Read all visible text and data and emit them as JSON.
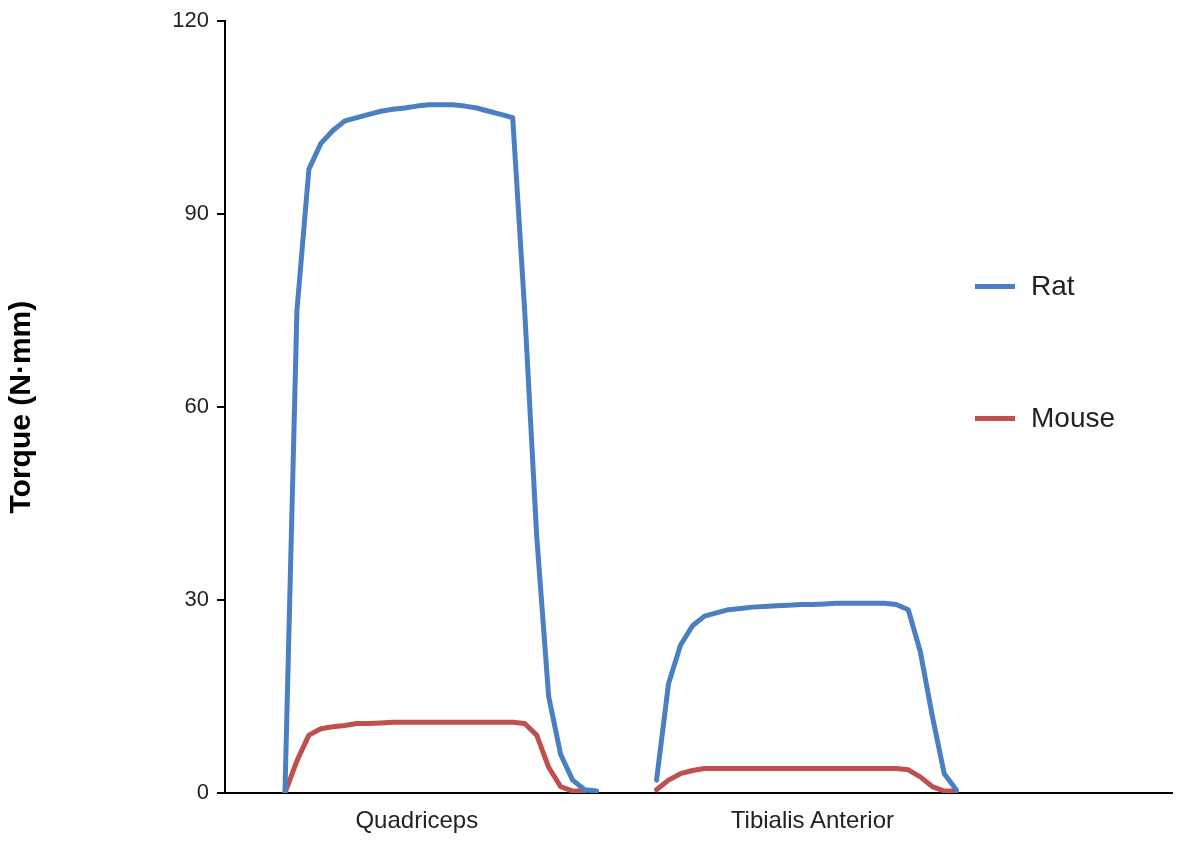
{
  "chart_data": {
    "type": "line",
    "ylabel": "Torque (N·mm)",
    "categories": [
      null,
      null,
      null,
      null,
      null,
      null,
      null,
      null,
      null,
      null,
      null,
      null,
      null,
      null,
      null,
      null,
      "Quadriceps",
      null,
      null,
      null,
      null,
      null,
      null,
      null,
      null,
      null,
      null,
      null,
      null,
      null,
      null,
      null,
      null,
      null,
      null,
      null,
      null,
      null,
      null,
      null,
      null,
      null,
      null,
      null,
      null,
      null,
      null,
      null,
      null,
      "Tibialis Anterior",
      null,
      null,
      null,
      null,
      null,
      null,
      null,
      null,
      null,
      null,
      null,
      null,
      null,
      null,
      null,
      null,
      null,
      null,
      null,
      null,
      null,
      null,
      null,
      null,
      null,
      null,
      null,
      null,
      null,
      null
    ],
    "series": [
      {
        "name": "Rat",
        "color": "#4a7fc1",
        "values": [
          null,
          null,
          null,
          null,
          null,
          0,
          75,
          97,
          101,
          103,
          104.5,
          105,
          105.5,
          106,
          106.3,
          106.5,
          106.8,
          107,
          107,
          107,
          106.8,
          106.5,
          106,
          105.5,
          105,
          75,
          40,
          15,
          6,
          2,
          0.5,
          0.3,
          null,
          null,
          null,
          null,
          2,
          17,
          23,
          26,
          27.5,
          28,
          28.5,
          28.7,
          28.9,
          29,
          29.1,
          29.2,
          29.3,
          29.3,
          29.4,
          29.5,
          29.5,
          29.5,
          29.5,
          29.5,
          29.3,
          28.5,
          22,
          12,
          3,
          0.5,
          null,
          null,
          null,
          null,
          null,
          null,
          null,
          null,
          null,
          null,
          null,
          null,
          null,
          null,
          null,
          null,
          null,
          null
        ]
      },
      {
        "name": "Mouse",
        "color": "#c0504d",
        "values": [
          null,
          null,
          null,
          null,
          null,
          0,
          5,
          9,
          10,
          10.3,
          10.5,
          10.8,
          10.8,
          10.9,
          11,
          11,
          11,
          11,
          11,
          11,
          11,
          11,
          11,
          11,
          11,
          10.8,
          9,
          4,
          1,
          0.3,
          0.3,
          null,
          null,
          null,
          null,
          null,
          0.5,
          2,
          3,
          3.5,
          3.8,
          3.8,
          3.8,
          3.8,
          3.8,
          3.8,
          3.8,
          3.8,
          3.8,
          3.8,
          3.8,
          3.8,
          3.8,
          3.8,
          3.8,
          3.8,
          3.8,
          3.6,
          2.5,
          1,
          0.3,
          0.3,
          null,
          null,
          null,
          null,
          null,
          null,
          null,
          null,
          null,
          null,
          null,
          null,
          null,
          null,
          null,
          null,
          null,
          null
        ]
      }
    ],
    "ylim": [
      0,
      120
    ],
    "yticks": [
      0,
      30,
      60,
      90,
      120
    ],
    "legend": "right",
    "marker": "none"
  }
}
